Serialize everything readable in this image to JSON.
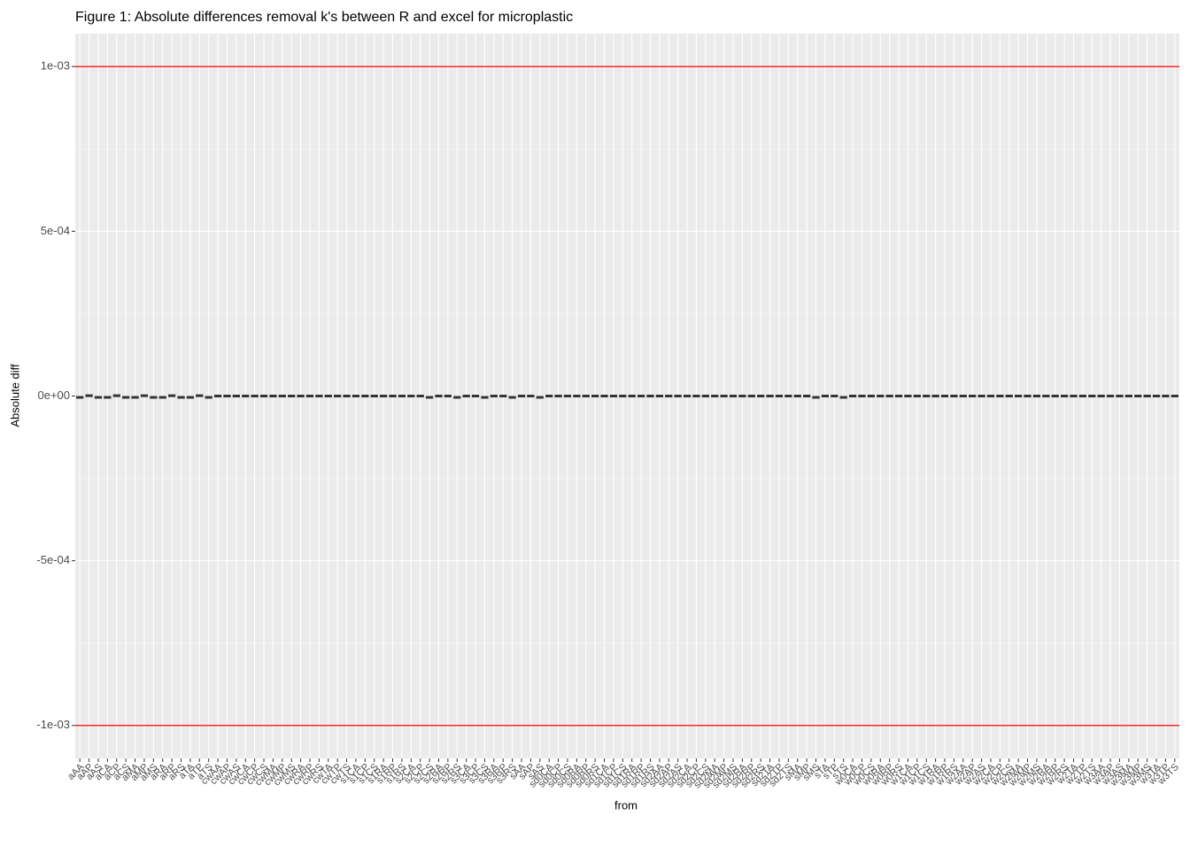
{
  "chart_data": {
    "type": "box",
    "title": "Figure 1: Absolute differences removal k's between R and excel for microplastic",
    "x_label": "from",
    "y_label": "Absolute diff",
    "categories": [
      "aAA",
      "aAP",
      "aAS",
      "aCA",
      "aCP",
      "aCS",
      "aMA",
      "aMP",
      "aMS",
      "aRA",
      "aRP",
      "aRS",
      "aTA",
      "aTP",
      "aTS",
      "cwAA",
      "cwAP",
      "cwAS",
      "cwCA",
      "cwCP",
      "cwCS",
      "cwMA",
      "cwMP",
      "cwMS",
      "cwRA",
      "cwRP",
      "cwRS",
      "cwTA",
      "cwTP",
      "cwTS",
      "s1CA",
      "s1CP",
      "s1CS",
      "s1RA",
      "s1RP",
      "s1RS",
      "s2CA",
      "s2CP",
      "s2CS",
      "s2RA",
      "s2RP",
      "s2RS",
      "s3CA",
      "s3CP",
      "s3CS",
      "s3RA",
      "s3RP",
      "s3RS",
      "sAA",
      "sAP",
      "sAS",
      "sd0CA",
      "sd0CP",
      "sd0CS",
      "sd0RA",
      "sd0RP",
      "sd0RS",
      "sd1CA",
      "sd1CP",
      "sd1CS",
      "sd1RA",
      "sd1RP",
      "sd1RS",
      "sd2AA",
      "sd2AP",
      "sd2AS",
      "sd2CA",
      "sd2CP",
      "sd2CS",
      "sd2MA",
      "sd2MP",
      "sd2MS",
      "sd2RA",
      "sd2RP",
      "sd2RS",
      "sd2TA",
      "sd2TP",
      "sd2TS",
      "sMA",
      "sMP",
      "sMS",
      "sTA",
      "sTP",
      "sTS",
      "w0CA",
      "w0CP",
      "w0CS",
      "w0RA",
      "w0RP",
      "w0RS",
      "w1CA",
      "w1CP",
      "w1CS",
      "w1RA",
      "w1RP",
      "w1RS",
      "w2AA",
      "w2AP",
      "w2AS",
      "w2CA",
      "w2CP",
      "w2CS",
      "w2MA",
      "w2MP",
      "w2MS",
      "w2RA",
      "w2RP",
      "w2RS",
      "w2TA",
      "w2TP",
      "w2TS",
      "w3AA",
      "w3AP",
      "w3AS",
      "w3MA",
      "w3MP",
      "w3MS",
      "w3TA",
      "w3TP",
      "w3TS"
    ],
    "values": [
      -4e-06,
      1e-06,
      -4e-06,
      -4e-06,
      1e-06,
      -4e-06,
      -4e-06,
      1e-06,
      -4e-06,
      -4e-06,
      1e-06,
      -4e-06,
      -4e-06,
      1e-06,
      -4e-06,
      0,
      0,
      0,
      0,
      0,
      0,
      0,
      0,
      0,
      0,
      0,
      0,
      0,
      0,
      0,
      0,
      0,
      0,
      0,
      0,
      0,
      0,
      0,
      -4e-06,
      0,
      0,
      -4e-06,
      0,
      0,
      -4e-06,
      0,
      0,
      -4e-06,
      0,
      0,
      -4e-06,
      0,
      0,
      0,
      0,
      0,
      0,
      0,
      0,
      0,
      0,
      0,
      0,
      0,
      0,
      0,
      0,
      0,
      0,
      0,
      0,
      0,
      0,
      0,
      0,
      0,
      0,
      0,
      0,
      0,
      -4e-06,
      0,
      0,
      -4e-06,
      0,
      0,
      0,
      0,
      0,
      0,
      0,
      0,
      0,
      0,
      0,
      0,
      0,
      0,
      0,
      0,
      0,
      0,
      0,
      0,
      0,
      0,
      0,
      0,
      0,
      0,
      0,
      0,
      0,
      0,
      0,
      0,
      0,
      0,
      0,
      0
    ],
    "color": "#333333",
    "hlines": [
      0.001,
      -0.001
    ],
    "hline_color": "#ff0000",
    "ylim": [
      -0.0011,
      0.0011
    ],
    "yticks": [
      {
        "value": -0.001,
        "label": "-1e-03"
      },
      {
        "value": -0.0005,
        "label": "-5e-04"
      },
      {
        "value": 0,
        "label": "0e+00"
      },
      {
        "value": 0.0005,
        "label": "5e-04"
      },
      {
        "value": 0.001,
        "label": "1e-03"
      }
    ],
    "grid": true
  }
}
